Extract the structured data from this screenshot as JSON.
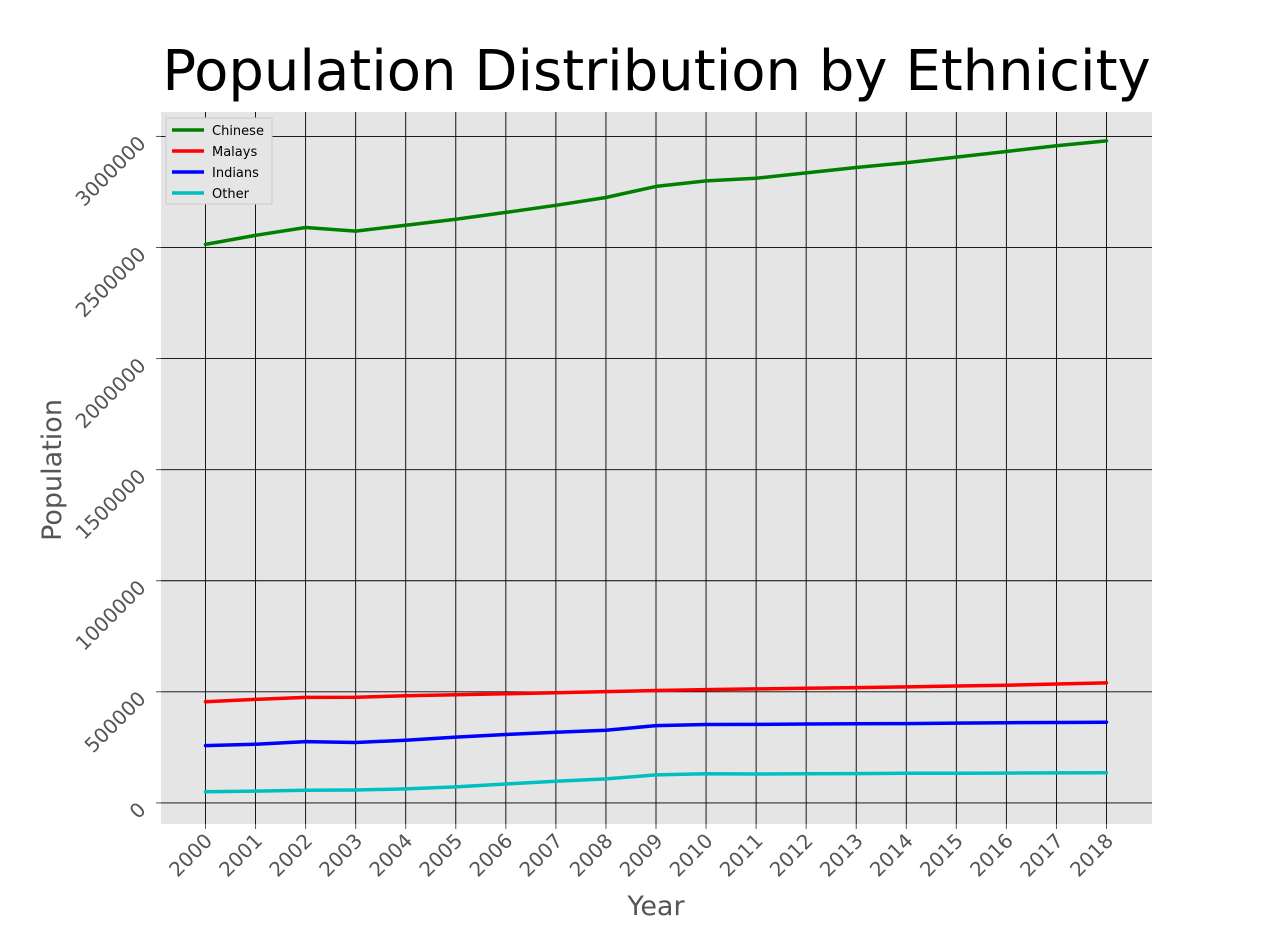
{
  "chart_data": {
    "type": "line",
    "title": "Population Distribution by Ethnicity",
    "xlabel": "Year",
    "ylabel": "Population",
    "x": [
      "2000",
      "2001",
      "2002",
      "2003",
      "2004",
      "2005",
      "2006",
      "2007",
      "2008",
      "2009",
      "2010",
      "2011",
      "2012",
      "2013",
      "2014",
      "2015",
      "2016",
      "2017",
      "2018"
    ],
    "y_ticks": [
      "0",
      "500000",
      "1000000",
      "1500000",
      "2000000",
      "2500000",
      "3000000"
    ],
    "ylim": [
      -95000,
      3110000
    ],
    "grid": true,
    "legend_position": "top-left",
    "background": "#e5e5e5",
    "series": [
      {
        "name": "Chinese",
        "color": "#008000",
        "values": [
          2513800,
          2555000,
          2590000,
          2573800,
          2600000,
          2627000,
          2658000,
          2690000,
          2725000,
          2775000,
          2800000,
          2812000,
          2836000,
          2860000,
          2882000,
          2907000,
          2932000,
          2958000,
          2980000
        ]
      },
      {
        "name": "Malays",
        "color": "#ff0000",
        "values": [
          455000,
          466000,
          475000,
          476000,
          482000,
          487000,
          491000,
          496000,
          501000,
          506000,
          510000,
          513000,
          516000,
          519000,
          522000,
          526000,
          530000,
          535000,
          540000
        ]
      },
      {
        "name": "Indians",
        "color": "#0000ff",
        "values": [
          258000,
          264000,
          276000,
          272000,
          282000,
          296000,
          308000,
          318000,
          327000,
          348000,
          353000,
          353500,
          355000,
          356000,
          357000,
          359000,
          361000,
          362000,
          363000
        ]
      },
      {
        "name": "Other",
        "color": "#00bfbf",
        "values": [
          50000,
          53000,
          57000,
          58000,
          63000,
          72000,
          85000,
          97000,
          108000,
          126000,
          131000,
          130000,
          131000,
          132000,
          133000,
          133000,
          134000,
          135000,
          136000
        ]
      }
    ]
  }
}
